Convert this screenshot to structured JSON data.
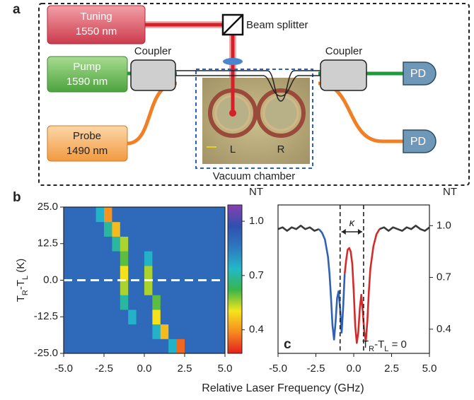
{
  "diagram": {
    "panel": "a",
    "tuning": {
      "line1": "Tuning",
      "line2": "1550 nm"
    },
    "pump": {
      "line1": "Pump",
      "line2": "1590 nm"
    },
    "probe": {
      "line1": "Probe",
      "line2": "1490 nm"
    },
    "beam_splitter": "Beam splitter",
    "couplers": [
      "Coupler",
      "Coupler"
    ],
    "detectors": [
      "PD",
      "PD"
    ],
    "chamber": "Vacuum chamber",
    "resonators": [
      "L",
      "R"
    ]
  },
  "chart_data": [
    {
      "type": "heatmap",
      "panel": "b",
      "ylabel": [
        {
          "text": "T"
        },
        {
          "text": "R",
          "sub": true
        },
        {
          "text": "-T"
        },
        {
          "text": "L",
          "sub": true
        },
        {
          "text": " (K)"
        }
      ],
      "x_edges": [
        -5,
        -4.5,
        -4,
        -3.5,
        -3,
        -2.5,
        -2,
        -1.5,
        -1,
        -0.5,
        0,
        0.5,
        1,
        1.5,
        2,
        2.5,
        3,
        3.5,
        4,
        4.5,
        5
      ],
      "y_edges": [
        -25,
        -20,
        -15,
        -10,
        -5,
        0,
        5,
        10,
        15,
        20,
        25
      ],
      "z": [
        [
          0.9,
          0.9,
          0.9,
          0.9,
          0.9,
          0.9,
          0.9,
          0.9,
          0.9,
          0.9,
          0.9,
          0.9,
          0.9,
          0.75,
          0.35,
          0.9,
          0.9,
          0.9,
          0.9,
          0.9
        ],
        [
          0.9,
          0.9,
          0.9,
          0.9,
          0.9,
          0.9,
          0.9,
          0.9,
          0.9,
          0.9,
          0.9,
          0.75,
          0.45,
          0.9,
          0.9,
          0.9,
          0.9,
          0.9,
          0.9,
          0.9
        ],
        [
          0.9,
          0.9,
          0.9,
          0.9,
          0.9,
          0.9,
          0.9,
          0.9,
          0.75,
          0.9,
          0.9,
          0.5,
          0.9,
          0.9,
          0.9,
          0.9,
          0.9,
          0.9,
          0.9,
          0.9
        ],
        [
          0.9,
          0.9,
          0.9,
          0.9,
          0.9,
          0.9,
          0.9,
          0.7,
          0.9,
          0.9,
          0.9,
          0.6,
          0.9,
          0.9,
          0.9,
          0.9,
          0.9,
          0.9,
          0.9,
          0.9
        ],
        [
          0.9,
          0.9,
          0.9,
          0.9,
          0.9,
          0.9,
          0.9,
          0.55,
          0.9,
          0.9,
          0.55,
          0.9,
          0.9,
          0.9,
          0.9,
          0.9,
          0.9,
          0.9,
          0.9,
          0.9
        ],
        [
          0.9,
          0.9,
          0.9,
          0.9,
          0.9,
          0.9,
          0.9,
          0.5,
          0.9,
          0.9,
          0.55,
          0.9,
          0.9,
          0.9,
          0.9,
          0.9,
          0.9,
          0.9,
          0.9,
          0.9
        ],
        [
          0.9,
          0.9,
          0.9,
          0.9,
          0.9,
          0.9,
          0.9,
          0.6,
          0.9,
          0.9,
          0.75,
          0.9,
          0.9,
          0.9,
          0.9,
          0.9,
          0.9,
          0.9,
          0.9,
          0.9
        ],
        [
          0.9,
          0.9,
          0.9,
          0.9,
          0.9,
          0.9,
          0.7,
          0.55,
          0.9,
          0.9,
          0.9,
          0.9,
          0.9,
          0.9,
          0.9,
          0.9,
          0.9,
          0.9,
          0.9,
          0.9
        ],
        [
          0.9,
          0.9,
          0.9,
          0.9,
          0.9,
          0.7,
          0.45,
          0.9,
          0.9,
          0.9,
          0.9,
          0.9,
          0.9,
          0.9,
          0.9,
          0.9,
          0.9,
          0.9,
          0.9,
          0.9
        ],
        [
          0.9,
          0.9,
          0.9,
          0.9,
          0.75,
          0.4,
          0.9,
          0.9,
          0.9,
          0.9,
          0.9,
          0.9,
          0.9,
          0.9,
          0.9,
          0.9,
          0.9,
          0.9,
          0.9,
          0.9
        ]
      ],
      "xlim": [
        -5,
        5
      ],
      "ylim": [
        -25,
        25
      ],
      "xticks": [
        {
          "value": -5,
          "label": "-5.0"
        },
        {
          "value": -2.5,
          "label": "-2.5"
        },
        {
          "value": 0,
          "label": "0.0"
        },
        {
          "value": 2.5,
          "label": "2.5"
        },
        {
          "value": 5,
          "label": "5.0"
        }
      ],
      "yticks": [
        {
          "value": 25,
          "label": "25.0"
        },
        12.5,
        {
          "value": 0,
          "label": "0.0"
        },
        -12.5,
        {
          "value": -25,
          "label": "-25.0"
        }
      ],
      "hline": 0,
      "colorbar_label": "NT",
      "clim": [
        0.27,
        1.09
      ],
      "cticks": [
        0.4,
        0.7,
        {
          "value": 1,
          "label": "1.0"
        }
      ],
      "colormap": [
        "#e41f1f",
        "#f68a1f",
        "#f5e51c",
        "#38b54a",
        "#22b8c8",
        "#2e78c0",
        "#2e50b0",
        "#8a3fb0"
      ]
    },
    {
      "type": "line",
      "panel": "c",
      "xlabel": "Relative Laser Frequency (GHz)",
      "ylabel": "NT",
      "annotation": [
        {
          "text": "T"
        },
        {
          "text": "R",
          "sub": true
        },
        {
          "text": "-T"
        },
        {
          "text": "L",
          "sub": true
        },
        {
          "text": " = 0"
        }
      ],
      "kappa": "κ",
      "vlines": [
        -0.9,
        0.65
      ],
      "series": [
        {
          "color": "#3a3a3a",
          "x": [
            -5,
            -4.7,
            -4.4,
            -4.1,
            -3.8,
            -3.5,
            -3.2,
            -2.9,
            -2.6,
            -2.3
          ],
          "values": [
            0.98,
            0.99,
            0.97,
            0.99,
            0.98,
            1.0,
            0.98,
            0.99,
            0.97,
            0.98
          ]
        },
        {
          "color": "#2f62b4",
          "x": [
            -2.3,
            -2.1,
            -1.9,
            -1.7,
            -1.6,
            -1.5,
            -1.4,
            -1.3,
            -1.2,
            -1.1,
            -1.0,
            -0.9,
            -0.8,
            -0.7,
            -0.6
          ],
          "values": [
            0.98,
            0.96,
            0.92,
            0.82,
            0.72,
            0.58,
            0.42,
            0.34,
            0.44,
            0.58,
            0.62,
            0.52,
            0.38,
            0.52,
            0.72
          ]
        },
        {
          "color": "#d62a2a",
          "x": [
            -0.6,
            -0.5,
            -0.4,
            -0.3,
            -0.2,
            -0.1,
            0,
            0.1,
            0.2,
            0.3,
            0.4,
            0.5,
            0.6,
            0.7,
            0.8,
            0.9,
            1.0,
            1.1,
            1.3,
            1.5,
            1.7
          ],
          "values": [
            0.72,
            0.8,
            0.86,
            0.87,
            0.85,
            0.78,
            0.62,
            0.42,
            0.32,
            0.38,
            0.52,
            0.6,
            0.5,
            0.38,
            0.33,
            0.45,
            0.62,
            0.75,
            0.88,
            0.95,
            0.98
          ]
        },
        {
          "color": "#3a3a3a",
          "x": [
            1.7,
            2.0,
            2.3,
            2.6,
            2.9,
            3.2,
            3.5,
            3.8,
            4.1,
            4.4,
            4.7,
            5.0
          ],
          "values": [
            0.98,
            0.99,
            0.97,
            0.99,
            0.98,
            0.97,
            0.99,
            0.98,
            1.0,
            0.98,
            0.97,
            0.99
          ]
        }
      ],
      "xlim": [
        -5,
        5
      ],
      "ylim": [
        0.26,
        1.12
      ],
      "xticks": [
        {
          "value": -5,
          "label": "-5.0"
        },
        {
          "value": -2.5,
          "label": "-2.5"
        },
        {
          "value": 0,
          "label": "0.0"
        },
        {
          "value": 2.5,
          "label": "2.5"
        },
        {
          "value": 5,
          "label": "5.0"
        }
      ],
      "yticks": [
        0.4,
        0.7,
        {
          "value": 1,
          "label": "1.0"
        }
      ]
    }
  ]
}
